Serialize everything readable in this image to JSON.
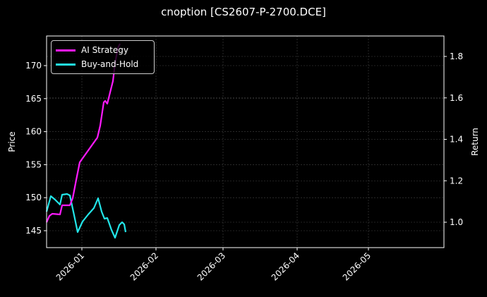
{
  "title": "cnoption [CS2607-P-2700.DCE]",
  "colors": {
    "background": "#000000",
    "ai_strategy": "#ff1aff",
    "buy_and_hold": "#22e5e8",
    "grid": "#444444",
    "axes": "#ffffff"
  },
  "legend": [
    {
      "label": "AI Strategy",
      "color": "#ff1aff"
    },
    {
      "label": "Buy-and-Hold",
      "color": "#22e5e8"
    }
  ],
  "axes": {
    "xlabel": "",
    "ylabel_left": "Price",
    "ylabel_right": "Return",
    "x_ticks": [
      "2026-01",
      "2026-02",
      "2026-03",
      "2026-04",
      "2026-05"
    ],
    "y_left_ticks": [
      "145",
      "150",
      "155",
      "160",
      "165",
      "170"
    ],
    "y_right_ticks": [
      "1.0",
      "1.2",
      "1.4",
      "1.6",
      "1.8"
    ]
  },
  "chart_data": {
    "type": "line",
    "title": "cnoption [CS2607-P-2700.DCE]",
    "xlabel": "",
    "ylabel": "Price",
    "ylabel_right": "Return",
    "x_range": [
      "2025-12-17",
      "2026-05-15"
    ],
    "ylim": [
      142.5,
      174.5
    ],
    "ylim_right": [
      0.88,
      1.89
    ],
    "grid": true,
    "legend_position": "upper left",
    "series": [
      {
        "name": "Buy-and-Hold",
        "axis": "left",
        "x": [
          "2025-12-17",
          "2025-12-19",
          "2025-12-21",
          "2025-12-23",
          "2025-12-24",
          "2025-12-26",
          "2025-12-27",
          "2025-12-29",
          "2025-12-31",
          "2026-01-02",
          "2026-01-04",
          "2026-01-07",
          "2026-01-09",
          "2026-01-10",
          "2026-01-12",
          "2026-01-13",
          "2026-01-15",
          "2026-01-16",
          "2026-01-18",
          "2026-01-19",
          "2026-01-20",
          "2026-01-21"
        ],
        "values": [
          147.8,
          150.2,
          149.6,
          148.9,
          150.4,
          150.5,
          150.3,
          147.3,
          144.7,
          146.3,
          147.4,
          148.3,
          149.8,
          147.8,
          146.7,
          146.8,
          145.0,
          143.8,
          145.7,
          146.2,
          145.9,
          144.7
        ]
      },
      {
        "name": "AI Strategy",
        "axis": "left",
        "x": [
          "2025-12-17",
          "2025-12-18",
          "2025-12-19",
          "2025-12-23",
          "2025-12-24",
          "2025-12-27",
          "2025-12-29",
          "2025-12-30",
          "2026-01-01",
          "2026-01-02",
          "2026-01-08",
          "2026-01-09",
          "2026-01-10",
          "2026-01-11",
          "2026-01-12",
          "2026-01-14",
          "2026-01-15",
          "2026-01-16",
          "2026-01-17"
        ],
        "values": [
          146.2,
          147.1,
          147.5,
          147.4,
          148.8,
          148.8,
          149.8,
          152.6,
          155.3,
          156.0,
          159.0,
          160.8,
          164.3,
          164.6,
          164.1,
          167.5,
          170.2,
          172.5,
          173.2
        ]
      }
    ],
    "pixel_paths": {
      "buy_and_hold": [
        [
          66,
          300
        ],
        [
          72,
          278
        ],
        [
          78,
          283
        ],
        [
          85,
          290
        ],
        [
          88,
          276
        ],
        [
          95,
          275
        ],
        [
          99,
          277
        ],
        [
          105,
          305
        ],
        [
          110,
          329
        ],
        [
          117,
          314
        ],
        [
          125,
          304
        ],
        [
          133,
          295
        ],
        [
          139,
          281
        ],
        [
          144,
          300
        ],
        [
          148,
          310
        ],
        [
          152,
          309
        ],
        [
          158,
          326
        ],
        [
          163,
          337
        ],
        [
          169,
          319
        ],
        [
          173,
          315
        ],
        [
          176,
          318
        ],
        [
          178,
          329
        ]
      ],
      "ai_strategy": [
        [
          66,
          315
        ],
        [
          70,
          306
        ],
        [
          74,
          303
        ],
        [
          85,
          304
        ],
        [
          88,
          291
        ],
        [
          99,
          291
        ],
        [
          103,
          281
        ],
        [
          108,
          255
        ],
        [
          113,
          230
        ],
        [
          118,
          223
        ],
        [
          138,
          195
        ],
        [
          142,
          178
        ],
        [
          147,
          145
        ],
        [
          149,
          143
        ],
        [
          152,
          147
        ],
        [
          160,
          115
        ],
        [
          163,
          90
        ],
        [
          167,
          68
        ],
        [
          170,
          62
        ]
      ]
    }
  }
}
